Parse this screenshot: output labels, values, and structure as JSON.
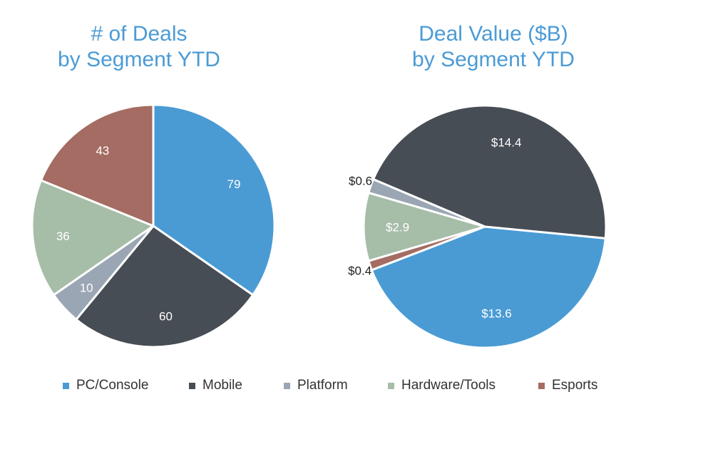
{
  "chart_data": [
    {
      "type": "pie",
      "title_lines": [
        "# of Deals",
        "by Segment YTD"
      ],
      "slices": [
        {
          "label": "PC/Console",
          "value": 79,
          "data_label": "79"
        },
        {
          "label": "Mobile",
          "value": 60,
          "data_label": "60"
        },
        {
          "label": "Platform",
          "value": 10,
          "data_label": "10"
        },
        {
          "label": "Hardware/Tools",
          "value": 36,
          "data_label": "36"
        },
        {
          "label": "Esports",
          "value": 43,
          "data_label": "43"
        }
      ]
    },
    {
      "type": "pie",
      "title_lines": [
        "Deal Value ($B)",
        "by Segment YTD"
      ],
      "slices": [
        {
          "label": "PC/Console",
          "value": 13.6,
          "data_label": "$13.6"
        },
        {
          "label": "Mobile",
          "value": 14.4,
          "data_label": "$14.4"
        },
        {
          "label": "Platform",
          "value": 0.6,
          "data_label": "$0.6"
        },
        {
          "label": "Hardware/Tools",
          "value": 2.9,
          "data_label": "$2.9"
        },
        {
          "label": "Esports",
          "value": 0.4,
          "data_label": "$0.4"
        }
      ]
    }
  ],
  "legend": [
    {
      "label": "PC/Console",
      "color": "#4a9bd4"
    },
    {
      "label": "Mobile",
      "color": "#474d54"
    },
    {
      "label": "Platform",
      "color": "#9aa6b3"
    },
    {
      "label": "Hardware/Tools",
      "color": "#a6bda8"
    },
    {
      "label": "Esports",
      "color": "#a46c62"
    }
  ],
  "colors": {
    "title": "#4b9bd5",
    "label_inside": "#ffffff",
    "label_outside": "#222222"
  }
}
